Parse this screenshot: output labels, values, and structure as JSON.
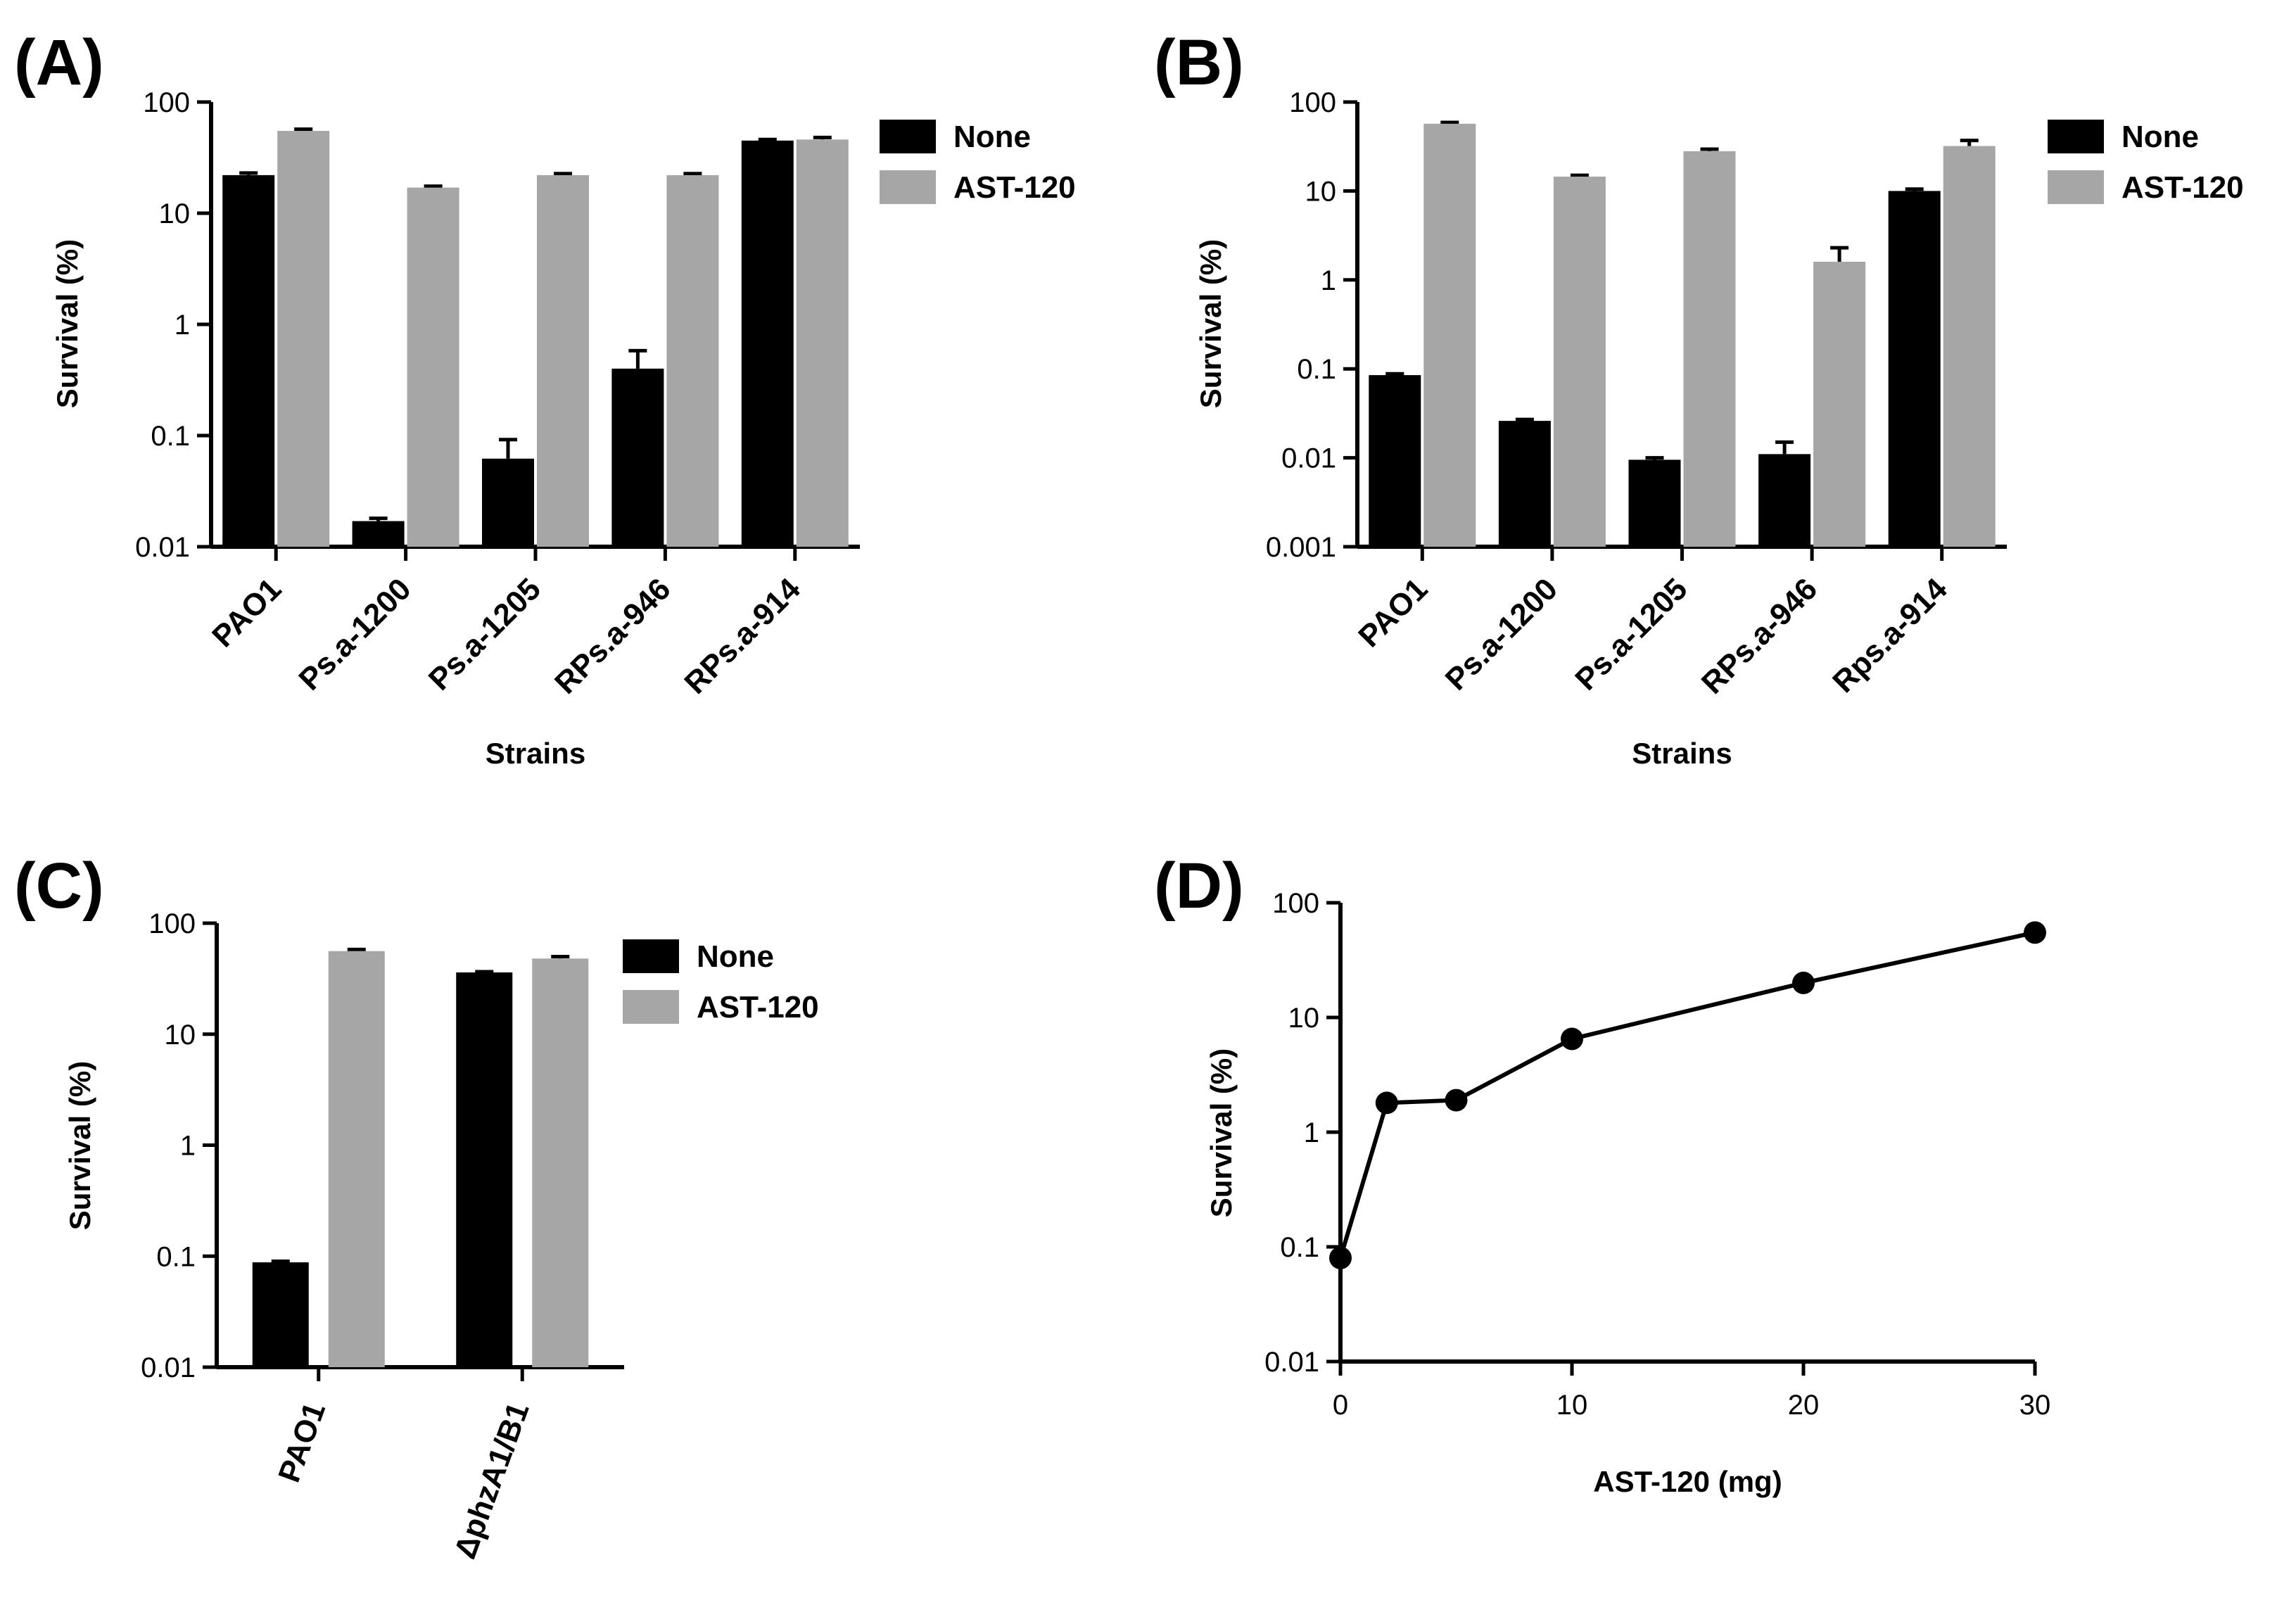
{
  "figure": {
    "panel_labels": [
      "(A)",
      "(B)",
      "(C)",
      "(D)"
    ]
  },
  "colors": {
    "none": "#000000",
    "ast120": "#a6a6a6",
    "axis": "#000000"
  },
  "chart_data": [
    {
      "panel": "(A)",
      "type": "bar",
      "yscale": "log",
      "ylim": [
        0.01,
        100
      ],
      "yticks": [
        "100",
        "10",
        "1",
        "0.1",
        "0.01"
      ],
      "ytick_values": [
        100,
        10,
        1,
        0.1,
        0.01
      ],
      "ylabel": "Survival (%)",
      "xlabel": "Strains",
      "categories": [
        "PAO1",
        "Ps.a-1200",
        "Ps.a-1205",
        "RPs.a-946",
        "RPs.a-914"
      ],
      "series": [
        {
          "name": "None",
          "color": "#000000",
          "values": [
            22,
            0.017,
            0.062,
            0.4,
            45
          ],
          "errors": [
            23,
            0.018,
            0.092,
            0.58,
            46
          ]
        },
        {
          "name": "AST-120",
          "color": "#a6a6a6",
          "values": [
            55,
            17,
            22,
            22,
            46
          ],
          "errors": [
            57,
            17.5,
            22.7,
            22.7,
            48
          ]
        }
      ],
      "legend": [
        "None",
        "AST-120"
      ]
    },
    {
      "panel": "(B)",
      "type": "bar",
      "yscale": "log",
      "ylim": [
        0.001,
        100
      ],
      "yticks": [
        "100",
        "10",
        "1",
        "0.1",
        "0.01",
        "0.001"
      ],
      "ytick_values": [
        100,
        10,
        1,
        0.1,
        0.01,
        0.001
      ],
      "ylabel": "Survival (%)",
      "xlabel": "Strains",
      "categories": [
        "PAO1",
        "Ps.a-1200",
        "Ps.a-1205",
        "RPs.a-946",
        "Rps.a-914"
      ],
      "series": [
        {
          "name": "None",
          "color": "#000000",
          "values": [
            0.085,
            0.026,
            0.0095,
            0.011,
            10
          ],
          "errors": [
            0.088,
            0.027,
            0.01,
            0.015,
            10.5
          ]
        },
        {
          "name": "AST-120",
          "color": "#a6a6a6",
          "values": [
            57,
            14.5,
            28,
            1.6,
            32
          ],
          "errors": [
            59,
            15,
            29.5,
            2.3,
            37
          ]
        }
      ],
      "legend": [
        "None",
        "AST-120"
      ]
    },
    {
      "panel": "(C)",
      "type": "bar",
      "yscale": "log",
      "ylim": [
        0.01,
        100
      ],
      "yticks": [
        "100",
        "10",
        "1",
        "0.1",
        "0.01"
      ],
      "ytick_values": [
        100,
        10,
        1,
        0.1,
        0.01
      ],
      "ylabel": "Survival (%)",
      "xlabel": "",
      "categories": [
        "PAO1",
        "ΔphzA1/B1"
      ],
      "series": [
        {
          "name": "None",
          "color": "#000000",
          "values": [
            0.088,
            36
          ],
          "errors": [
            0.09,
            36.5
          ]
        },
        {
          "name": "AST-120",
          "color": "#a6a6a6",
          "values": [
            56,
            48
          ],
          "errors": [
            58,
            50
          ]
        }
      ],
      "legend": [
        "None",
        "AST-120"
      ]
    },
    {
      "panel": "(D)",
      "type": "line",
      "yscale": "log",
      "ylim": [
        0.01,
        100
      ],
      "xlim": [
        0,
        30
      ],
      "yticks": [
        "100",
        "10",
        "1",
        "0.1",
        "0.01"
      ],
      "ytick_values": [
        100,
        10,
        1,
        0.1,
        0.01
      ],
      "xticks": [
        "0",
        "10",
        "20",
        "30"
      ],
      "xtick_values": [
        0,
        10,
        20,
        30
      ],
      "ylabel": "Survival (%)",
      "xlabel": "AST-120 (mg)",
      "x": [
        0,
        2,
        5,
        10,
        20,
        30
      ],
      "y": [
        0.08,
        1.8,
        1.9,
        6.5,
        20,
        55
      ],
      "errors": [
        0.09,
        2.0,
        2.0,
        6.8,
        21,
        57
      ]
    }
  ]
}
